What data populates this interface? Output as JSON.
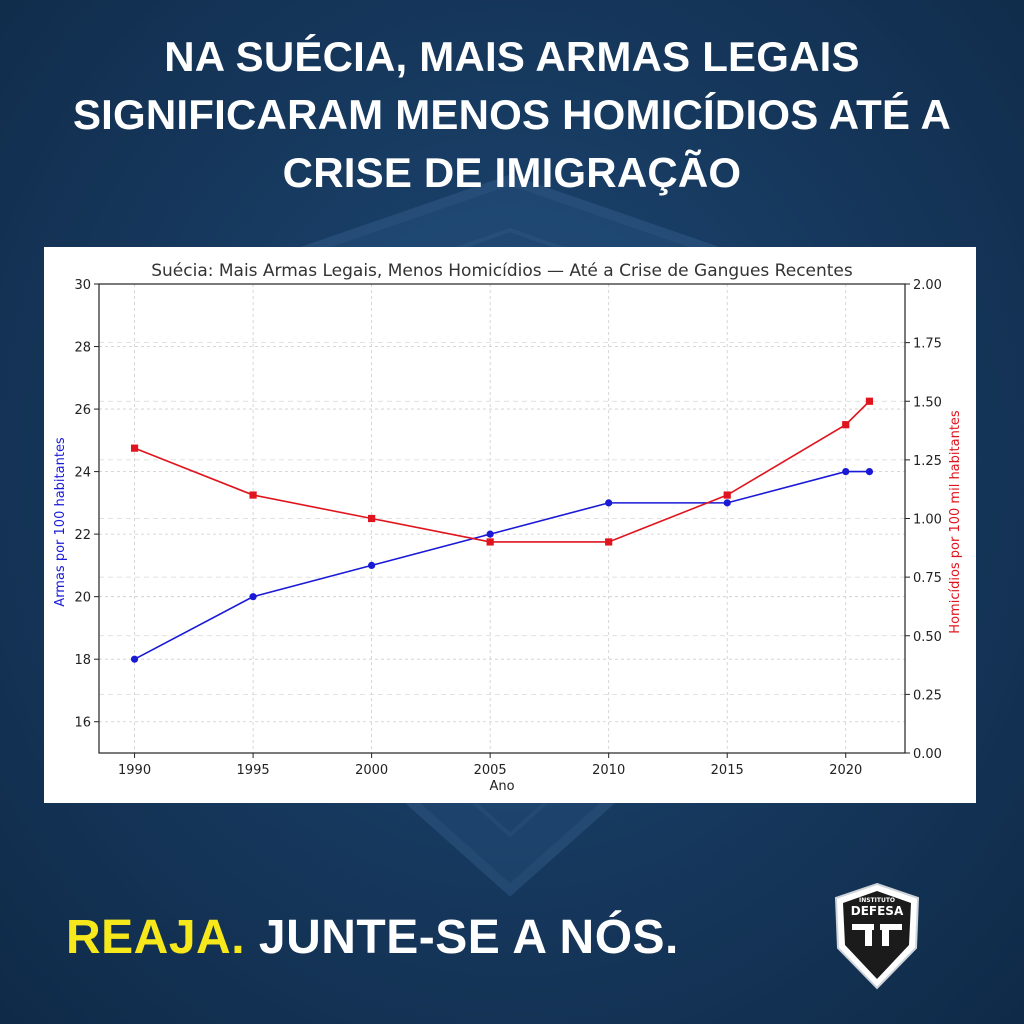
{
  "headline": {
    "line1": "NA SUÉCIA, MAIS ARMAS LEGAIS",
    "line2": "SIGNIFICARAM MENOS HOMICÍDIOS ATÉ A",
    "line3": "CRISE DE IMIGRAÇÃO"
  },
  "cta": {
    "highlight": "REAJA.",
    "rest": " JUNTE-SE A NÓS."
  },
  "logo": {
    "name": "DEFESA",
    "top_text": "INSTITUTO"
  },
  "colors": {
    "gun_series": "#1a1ad6",
    "homicide_series": "#e0141e",
    "highlight": "#f7e81c"
  },
  "chart_data": {
    "type": "line",
    "title": "Suécia: Mais Armas Legais, Menos Homicídios — Até a Crise de Gangues Recentes",
    "xlabel": "Ano",
    "ylabel_left": "Armas por 100 habitantes",
    "ylabel_right": "Homicídios por 100 mil habitantes",
    "x": [
      1990,
      1995,
      2000,
      2005,
      2010,
      2015,
      2020,
      2021
    ],
    "x_ticks": [
      "1990",
      "1995",
      "2000",
      "2005",
      "2010",
      "2015",
      "2020"
    ],
    "xlim": [
      1988.5,
      2022.5
    ],
    "ylim_left": [
      15,
      30
    ],
    "yticks_left": [
      "16",
      "18",
      "20",
      "22",
      "24",
      "26",
      "28",
      "30"
    ],
    "ylim_right": [
      0,
      2
    ],
    "yticks_right": [
      "0.00",
      "0.25",
      "0.50",
      "0.75",
      "1.00",
      "1.25",
      "1.50",
      "1.75",
      "2.00"
    ],
    "grid": true,
    "series": [
      {
        "axis": "left",
        "color": "#1a1ad6",
        "marker": "circle",
        "values": [
          18,
          20,
          21,
          22,
          23,
          23,
          24,
          24
        ]
      },
      {
        "axis": "right",
        "color": "#e0141e",
        "marker": "square",
        "values": [
          1.3,
          1.1,
          1.0,
          0.9,
          0.9,
          1.1,
          1.4,
          1.5
        ]
      }
    ]
  }
}
